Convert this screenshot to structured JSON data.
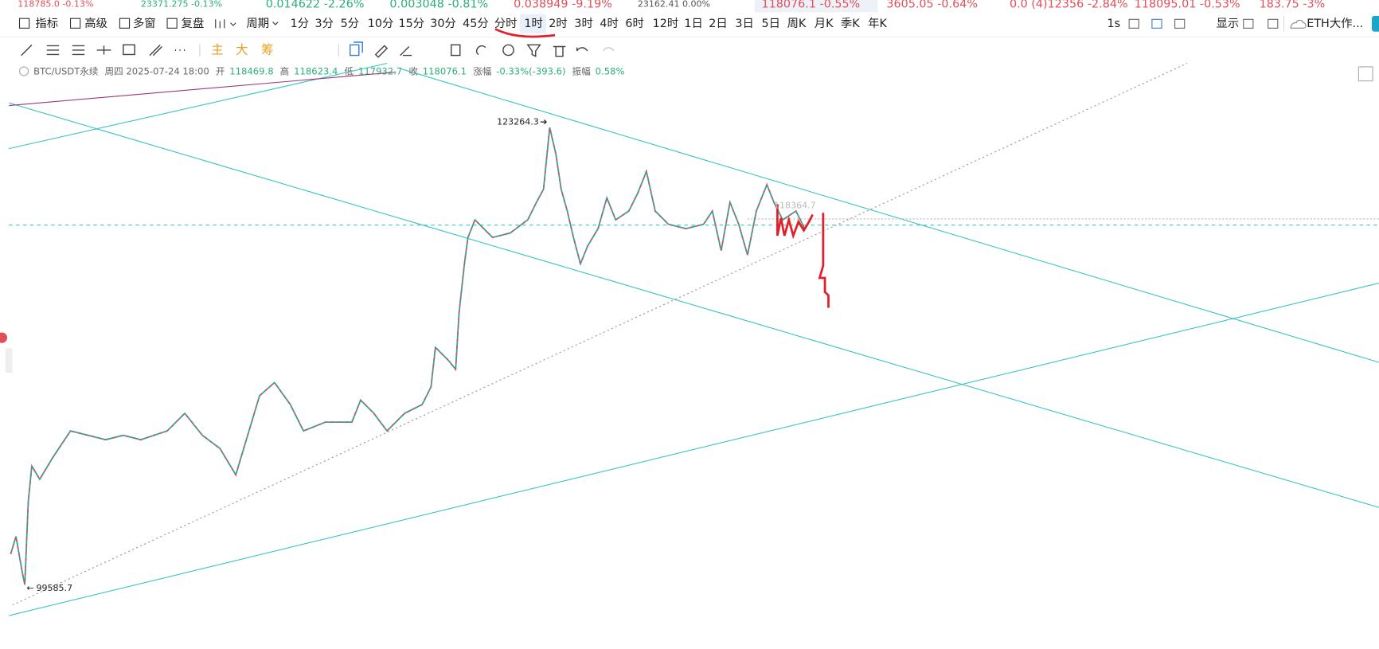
{
  "ticker_strip": [
    {
      "text": "118785.0 -0.13%",
      "color": "#e0505a",
      "size": 10
    },
    {
      "text": "23371.275 -0.13%",
      "color": "#2bb07a",
      "size": 10
    },
    {
      "text": "0.014622 -2.26%",
      "color": "#2bb07a",
      "size": 13
    },
    {
      "text": "0.003048 -0.81%",
      "color": "#2bb07a",
      "size": 13
    },
    {
      "text": "0.038949 -9.19%",
      "color": "#e0505a",
      "size": 13
    },
    {
      "text": "23162.41 0.00%",
      "color": "#555555",
      "size": 10
    },
    {
      "text": "118076.1 -0.55%",
      "color": "#e0505a",
      "size": 13
    },
    {
      "text": "3605.05 -0.64%",
      "color": "#e0505a",
      "size": 13
    },
    {
      "text": "0.0 (4)12356 -2.84%",
      "color": "#e0505a",
      "size": 13
    },
    {
      "text": "118095.01 -0.53%",
      "color": "#e0505a",
      "size": 13
    },
    {
      "text": "183.75 -3%",
      "color": "#e0505a",
      "size": 13
    }
  ],
  "toolbar": {
    "left": [
      "指标",
      "高级",
      "多窗",
      "复盘",
      "周期"
    ],
    "intervals": [
      "1分",
      "3分",
      "5分",
      "10分",
      "15分",
      "30分",
      "45分",
      "分时",
      "1时",
      "2时",
      "3时",
      "4时",
      "6时",
      "12时",
      "1日",
      "2日",
      "3日",
      "5日",
      "周K",
      "月K",
      "季K",
      "年K"
    ],
    "active_interval_index": 8,
    "right": [
      "1s",
      "显示",
      "ETH大作..."
    ]
  },
  "drawing_tools": [
    "主",
    "大",
    "筹"
  ],
  "info": {
    "symbol": "BTC/USDT永续",
    "time": "周四 2025-07-24 18:00",
    "open_label": "开",
    "open": "118469.8",
    "high_label": "高",
    "high": "118623.4",
    "low_label": "低",
    "low": "117932.7",
    "close_label": "收",
    "close": "118076.1",
    "change_label": "涨幅",
    "change": "-0.33%(-393.6)",
    "amp_label": "振幅",
    "amp": "0.58%"
  },
  "chart": {
    "high_label": "123264.3",
    "low_label": "99585.7",
    "last_label": "118364.7"
  }
}
